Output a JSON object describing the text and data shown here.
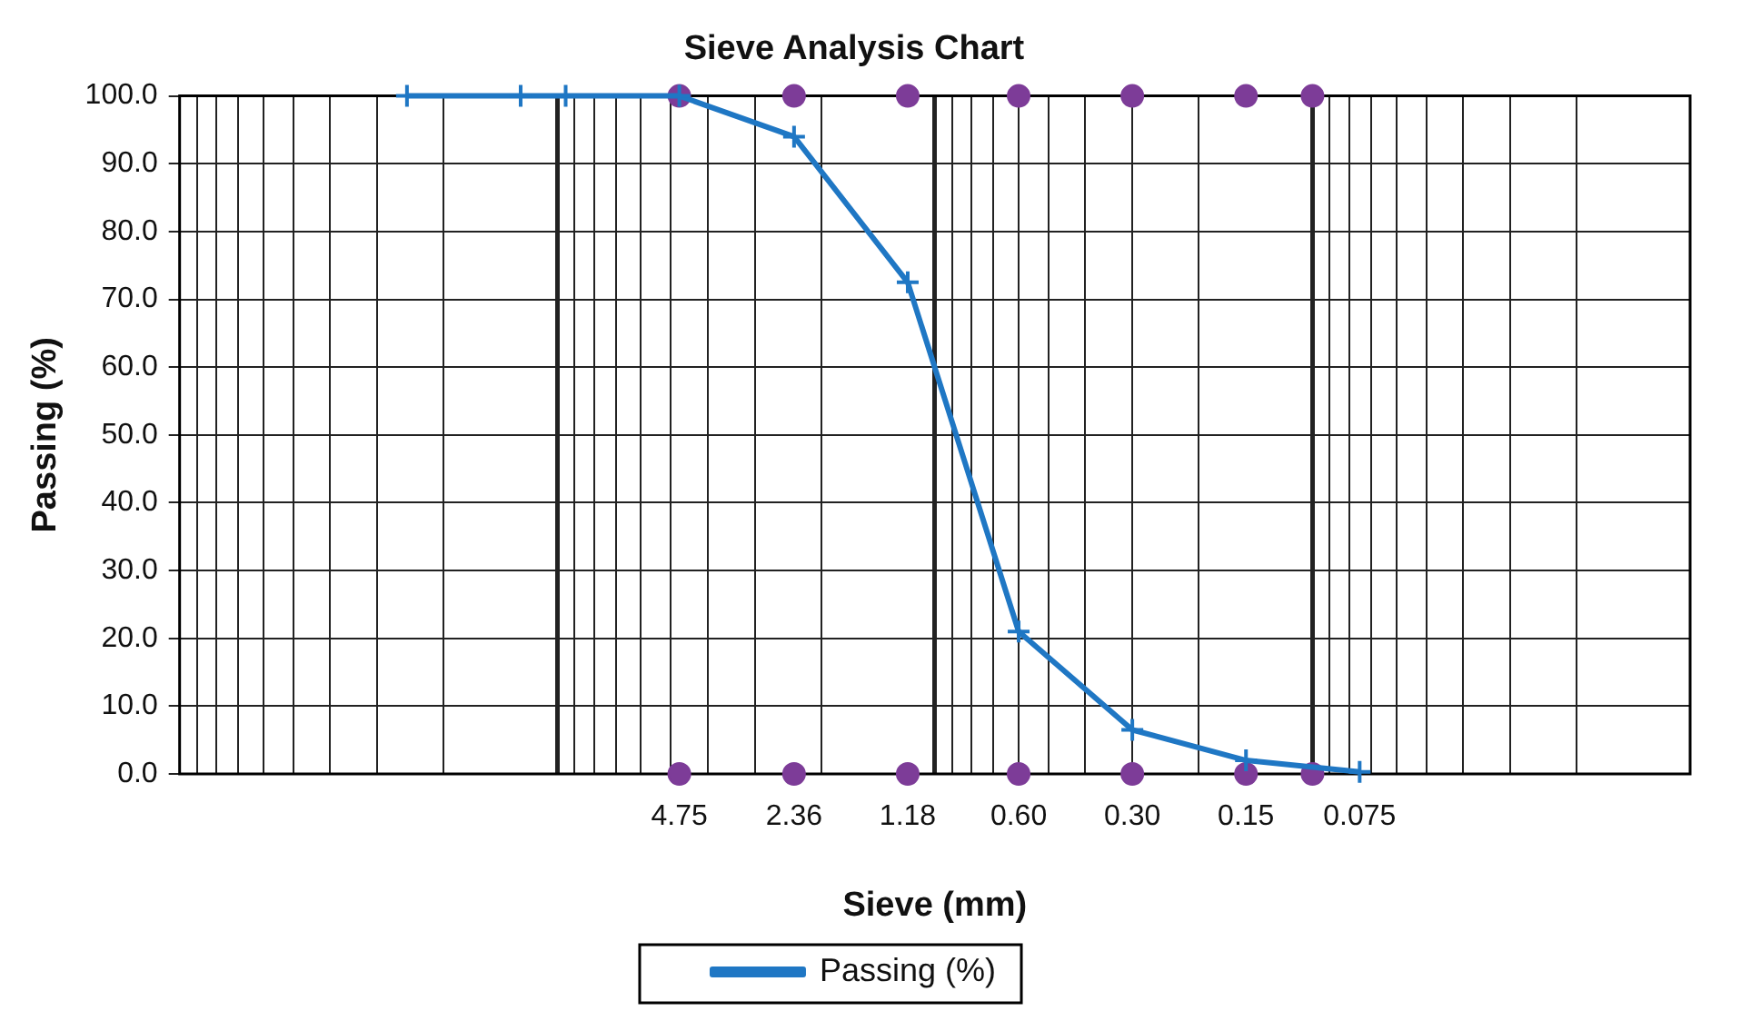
{
  "chart_data": {
    "type": "line",
    "title": "Sieve Analysis Chart",
    "xlabel": "Sieve (mm)",
    "ylabel": "Passing (%)",
    "log": "x",
    "grid": true,
    "legend": "bottom",
    "marker": "cross",
    "line_style": "solid",
    "xlim": [
      100,
      0.01
    ],
    "xticks": [
      {
        "value": 90,
        "label": null
      },
      {
        "value": 80,
        "label": null
      },
      {
        "value": 70,
        "label": null
      },
      {
        "value": 60,
        "label": null
      },
      {
        "value": 50,
        "label": null
      },
      {
        "value": 40,
        "label": null
      },
      {
        "value": 30,
        "label": null
      },
      {
        "value": 20,
        "label": null
      },
      {
        "value": 10,
        "label": null
      },
      {
        "value": 9,
        "label": null
      },
      {
        "value": 8,
        "label": null
      },
      {
        "value": 7,
        "label": null
      },
      {
        "value": 6,
        "label": null
      },
      {
        "value": 5,
        "label": null
      },
      {
        "value": 4,
        "label": null
      },
      {
        "value": 3,
        "label": null
      },
      {
        "value": 2,
        "label": null
      },
      {
        "value": 1,
        "label": null
      },
      {
        "value": 0.9,
        "label": null
      },
      {
        "value": 0.8,
        "label": null
      },
      {
        "value": 0.7,
        "label": null
      },
      {
        "value": 0.6,
        "label": null
      },
      {
        "value": 0.5,
        "label": null
      },
      {
        "value": 0.4,
        "label": null
      },
      {
        "value": 0.3,
        "label": null
      },
      {
        "value": 0.2,
        "label": null
      },
      {
        "value": 0.1,
        "label": null
      },
      {
        "value": 0.09,
        "label": null
      },
      {
        "value": 0.08,
        "label": null
      },
      {
        "value": 0.07,
        "label": null
      },
      {
        "value": 0.06,
        "label": null
      },
      {
        "value": 0.05,
        "label": null
      },
      {
        "value": 0.04,
        "label": null
      },
      {
        "value": 0.03,
        "label": null
      },
      {
        "value": 0.02,
        "label": null
      },
      {
        "value": 4.75,
        "label": "4.75"
      },
      {
        "value": 2.36,
        "label": "2.36"
      },
      {
        "value": 1.18,
        "label": "1.18"
      },
      {
        "value": 0.6,
        "label": "0.60"
      },
      {
        "value": 0.3,
        "label": "0.30"
      },
      {
        "value": 0.15,
        "label": "0.15"
      },
      {
        "value": 0.075,
        "label": "0.075"
      }
    ],
    "ylim": [
      0,
      100
    ],
    "yticks": [
      {
        "value": 0,
        "label": "0.0"
      },
      {
        "value": 10,
        "label": "10.0"
      },
      {
        "value": 20,
        "label": "20.0"
      },
      {
        "value": 30,
        "label": "30.0"
      },
      {
        "value": 40,
        "label": "40.0"
      },
      {
        "value": 50,
        "label": "50.0"
      },
      {
        "value": 60,
        "label": "60.0"
      },
      {
        "value": 70,
        "label": "70.0"
      },
      {
        "value": 80,
        "label": "80.0"
      },
      {
        "value": 90,
        "label": "90.0"
      },
      {
        "value": 100,
        "label": "100.0"
      }
    ],
    "series": [
      {
        "type": "scatter",
        "marker": "circle",
        "color": "#7d3c98",
        "x": [
          4.75,
          2.36,
          1.18,
          0.6,
          0.3,
          0.15,
          0.1
        ],
        "values": [
          100,
          100,
          100,
          100,
          100,
          100,
          100
        ]
      },
      {
        "type": "scatter",
        "marker": "circle",
        "color": "#7d3c98",
        "x": [
          4.75,
          2.36,
          1.18,
          0.6,
          0.3,
          0.15,
          0.1
        ],
        "values": [
          0,
          0,
          0,
          0,
          0,
          0,
          0
        ]
      },
      {
        "type": "line",
        "name": "Passing (%)",
        "color": "#1f77c4",
        "x": [
          25,
          12.5,
          9.5,
          4.75,
          2.36,
          1.18,
          0.6,
          0.3,
          0.15,
          0.075
        ],
        "values": [
          100,
          100,
          100,
          100,
          94,
          72.5,
          21,
          6.5,
          2,
          0.3
        ]
      }
    ]
  }
}
